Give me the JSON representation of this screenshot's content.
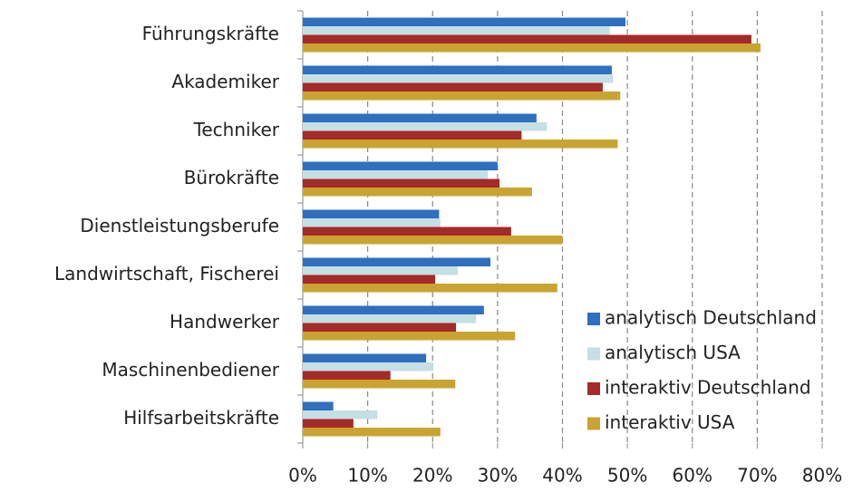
{
  "chart_data": {
    "type": "bar",
    "orientation": "horizontal",
    "categories": [
      "Führungskräfte",
      "Akademiker",
      "Techniker",
      "Bürokräfte",
      "Dienstleistungsberufe",
      "Landwirtschaft, Fischerei",
      "Handwerker",
      "Maschinenbediener",
      "Hilfsarbeitskräfte"
    ],
    "series": [
      {
        "name": "analytisch Deutschland",
        "color": "#2e6fc0",
        "values": [
          49.7,
          47.6,
          36.0,
          30.0,
          21.0,
          28.9,
          27.9,
          19.0,
          4.7
        ]
      },
      {
        "name": "analytisch USA",
        "color": "#c5dfe3",
        "values": [
          47.3,
          47.8,
          37.6,
          28.5,
          21.2,
          23.9,
          26.7,
          20.1,
          11.5
        ]
      },
      {
        "name": "interaktiv Deutschland",
        "color": "#a52a2a",
        "values": [
          69.1,
          46.2,
          33.7,
          30.3,
          32.1,
          20.4,
          23.6,
          13.5,
          7.8
        ]
      },
      {
        "name": "interaktiv USA",
        "color": "#c9a430",
        "values": [
          70.5,
          48.9,
          48.5,
          35.3,
          40.0,
          39.2,
          32.7,
          23.5,
          21.2
        ]
      }
    ],
    "xlim": [
      0,
      80
    ],
    "xticks": [
      {
        "value": 0,
        "label": "0%"
      },
      {
        "value": 10,
        "label": "10%"
      },
      {
        "value": 20,
        "label": "20%"
      },
      {
        "value": 30,
        "label": "30%"
      },
      {
        "value": 40,
        "label": "40%"
      },
      {
        "value": 50,
        "label": "50%"
      },
      {
        "value": 60,
        "label": "60%"
      },
      {
        "value": 70,
        "label": "70%"
      },
      {
        "value": 80,
        "label": "80%"
      }
    ],
    "grid": true,
    "legend": "right"
  }
}
